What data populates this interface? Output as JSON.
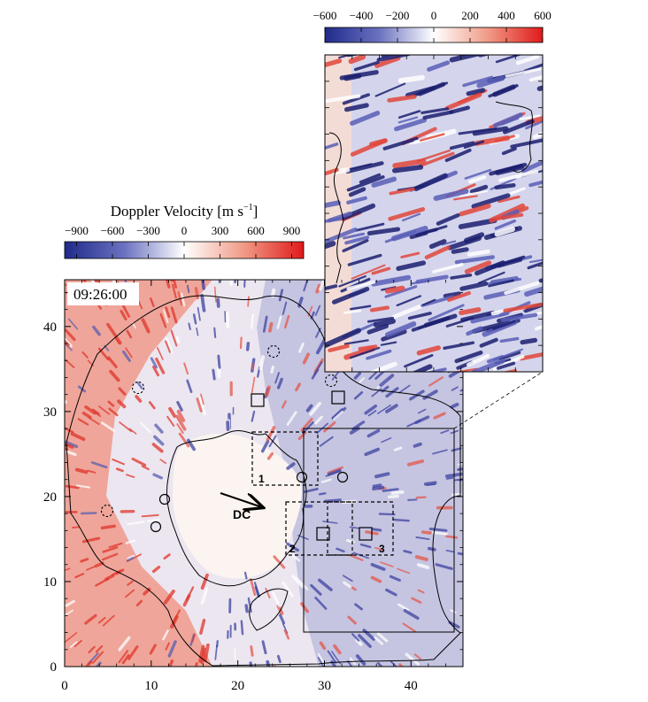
{
  "figure": {
    "timestamp": "09:26:00",
    "dc_label": "DC",
    "box_labels": [
      "1",
      "2",
      "3"
    ]
  },
  "main_colorbar": {
    "title_main": "Doppler Velocity [m s",
    "title_sup": "−1",
    "title_end": "]",
    "tick_labels": [
      "−900",
      "−600",
      "−300",
      "0",
      "300",
      "600",
      "900"
    ],
    "range": [
      -1000,
      1000
    ],
    "colors": {
      "negative": "#2a2f8f",
      "zero": "#ffffff",
      "positive": "#e0201e"
    }
  },
  "inset_colorbar": {
    "tick_labels": [
      "−600",
      "−400",
      "−200",
      "0",
      "200",
      "400",
      "600"
    ],
    "range": [
      -600,
      600
    ]
  },
  "axes": {
    "x_ticks": [
      "0",
      "10",
      "20",
      "30",
      "40"
    ],
    "y_ticks": [
      "0",
      "10",
      "20",
      "30",
      "40"
    ],
    "x_range": [
      0,
      46
    ],
    "y_range": [
      0,
      45.5
    ]
  }
}
